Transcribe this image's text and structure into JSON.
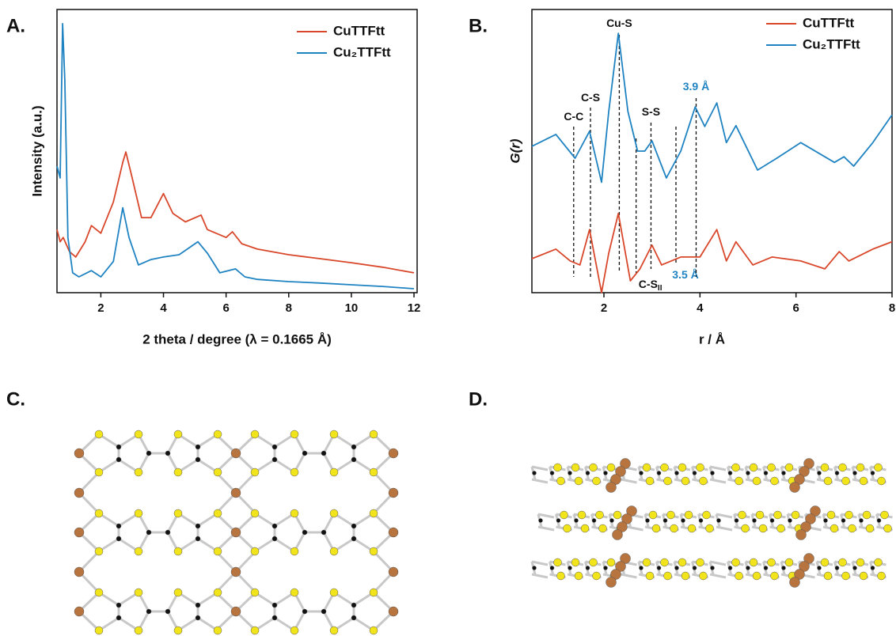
{
  "panel_labels": [
    "A.",
    "B.",
    "C.",
    "D."
  ],
  "chart_data": [
    {
      "type": "line",
      "xlabel": "2 theta / degree (λ = 0.1665 Å)",
      "ylabel": "Intensity (a.u.)",
      "xlim": [
        0.6,
        12.1
      ],
      "ylim": [
        0,
        100
      ],
      "xticks": [
        2,
        4,
        6,
        8,
        10,
        12
      ],
      "legend": "upper right",
      "series": [
        {
          "name": "CuTTFtt",
          "color": "#d9472b",
          "x": [
            0.6,
            0.7,
            0.8,
            1.0,
            1.2,
            1.5,
            1.7,
            2.0,
            2.4,
            2.7,
            2.8,
            3.0,
            3.3,
            3.6,
            4.0,
            4.3,
            4.7,
            5.2,
            5.4,
            6.0,
            6.2,
            6.5,
            7,
            8,
            9,
            10,
            11,
            12
          ],
          "values": [
            22.3,
            18,
            19.5,
            14.5,
            12.6,
            18,
            23.7,
            21,
            32,
            46,
            49.7,
            40.5,
            26.5,
            26.5,
            35,
            28,
            25,
            27.4,
            22.3,
            19.5,
            21.5,
            17.3,
            15.4,
            13.4,
            12,
            10.6,
            9,
            7
          ]
        },
        {
          "name": "Cu₂TTFtt",
          "color": "#1f83c2",
          "x": [
            0.6,
            0.7,
            0.78,
            0.85,
            0.95,
            1.1,
            1.3,
            1.7,
            2.0,
            2.4,
            2.7,
            2.9,
            3.2,
            3.6,
            4.0,
            4.5,
            5.1,
            5.4,
            5.8,
            6.3,
            6.6,
            7,
            8,
            9,
            10,
            11,
            12
          ],
          "values": [
            44.7,
            40.5,
            95,
            75,
            19.5,
            7,
            5.6,
            7.8,
            5.6,
            11,
            30,
            19.5,
            9.8,
            11.7,
            12.6,
            13.4,
            18,
            14,
            7,
            8.4,
            5.6,
            4.7,
            3.9,
            3.4,
            2.8,
            2.2,
            1.4
          ]
        }
      ]
    },
    {
      "type": "line",
      "xlabel": "r / Å",
      "ylabel": "G(r)",
      "xlim": [
        0.5,
        8
      ],
      "ylim": [
        0,
        100
      ],
      "xticks": [
        2,
        4,
        6,
        8
      ],
      "legend": "upper right",
      "series": [
        {
          "name": "CuTTFtt",
          "color": "#d9472b",
          "x": [
            0.5,
            1.0,
            1.3,
            1.5,
            1.7,
            1.95,
            2.1,
            2.3,
            2.55,
            2.75,
            3.0,
            3.2,
            3.6,
            4.0,
            4.35,
            4.55,
            4.75,
            5.1,
            5.5,
            6.1,
            6.6,
            6.9,
            7.1,
            7.6,
            8.0
          ],
          "values": [
            12,
            15.4,
            11.2,
            9.8,
            22.3,
            0,
            14,
            28,
            4.2,
            8.4,
            16.8,
            9.8,
            12.6,
            12.6,
            22.3,
            11.2,
            18,
            9.8,
            12.6,
            11.2,
            8.4,
            14.5,
            11.2,
            15.4,
            18
          ]
        },
        {
          "name": "Cu₂TTFtt",
          "color": "#1f83c2",
          "x": [
            0.5,
            1.0,
            1.4,
            1.7,
            1.95,
            2.1,
            2.3,
            2.5,
            2.7,
            2.85,
            3.0,
            3.3,
            3.6,
            3.9,
            4.1,
            4.35,
            4.55,
            4.75,
            5.2,
            5.6,
            6.1,
            6.8,
            7.0,
            7.2,
            7.6,
            8.0
          ],
          "values": [
            51.7,
            55.9,
            47.5,
            57,
            39,
            64,
            91.6,
            64,
            50,
            50,
            53.6,
            40.5,
            50,
            65.6,
            58.7,
            67,
            53,
            59,
            43.3,
            47.5,
            53,
            46,
            48,
            44.7,
            53,
            62.8
          ]
        }
      ],
      "annotations": [
        {
          "text": "C-C",
          "x": 1.37
        },
        {
          "text": "C-S",
          "x": 1.72
        },
        {
          "text": "Cu-S",
          "x": 2.32
        },
        {
          "text": "C-S",
          "subscript": "II",
          "x": 2.67
        },
        {
          "text": "S-S",
          "x": 2.98
        },
        {
          "text": "3.5 Å",
          "x": 3.5,
          "color": "#1f83c2"
        },
        {
          "text": "3.9 Å",
          "x": 3.92,
          "color": "#1f83c2"
        }
      ]
    }
  ]
}
